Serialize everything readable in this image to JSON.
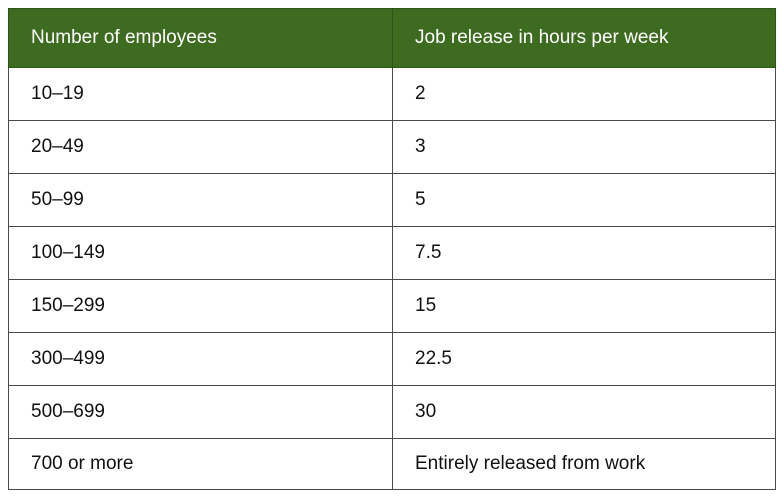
{
  "table": {
    "headers": [
      "Number of employees",
      "Job release in hours per week"
    ],
    "rows": [
      [
        "10–19",
        "2"
      ],
      [
        "20–49",
        "3"
      ],
      [
        "50–99",
        "5"
      ],
      [
        "100–149",
        "7.5"
      ],
      [
        "150–299",
        "15"
      ],
      [
        "300–499",
        "22.5"
      ],
      [
        "500–699",
        "30"
      ],
      [
        "700 or more",
        "Entirely released from work"
      ]
    ]
  },
  "colors": {
    "header_background": "#3d6b1f",
    "header_text": "#ffffff",
    "grid_line": "#4a4a4a"
  }
}
